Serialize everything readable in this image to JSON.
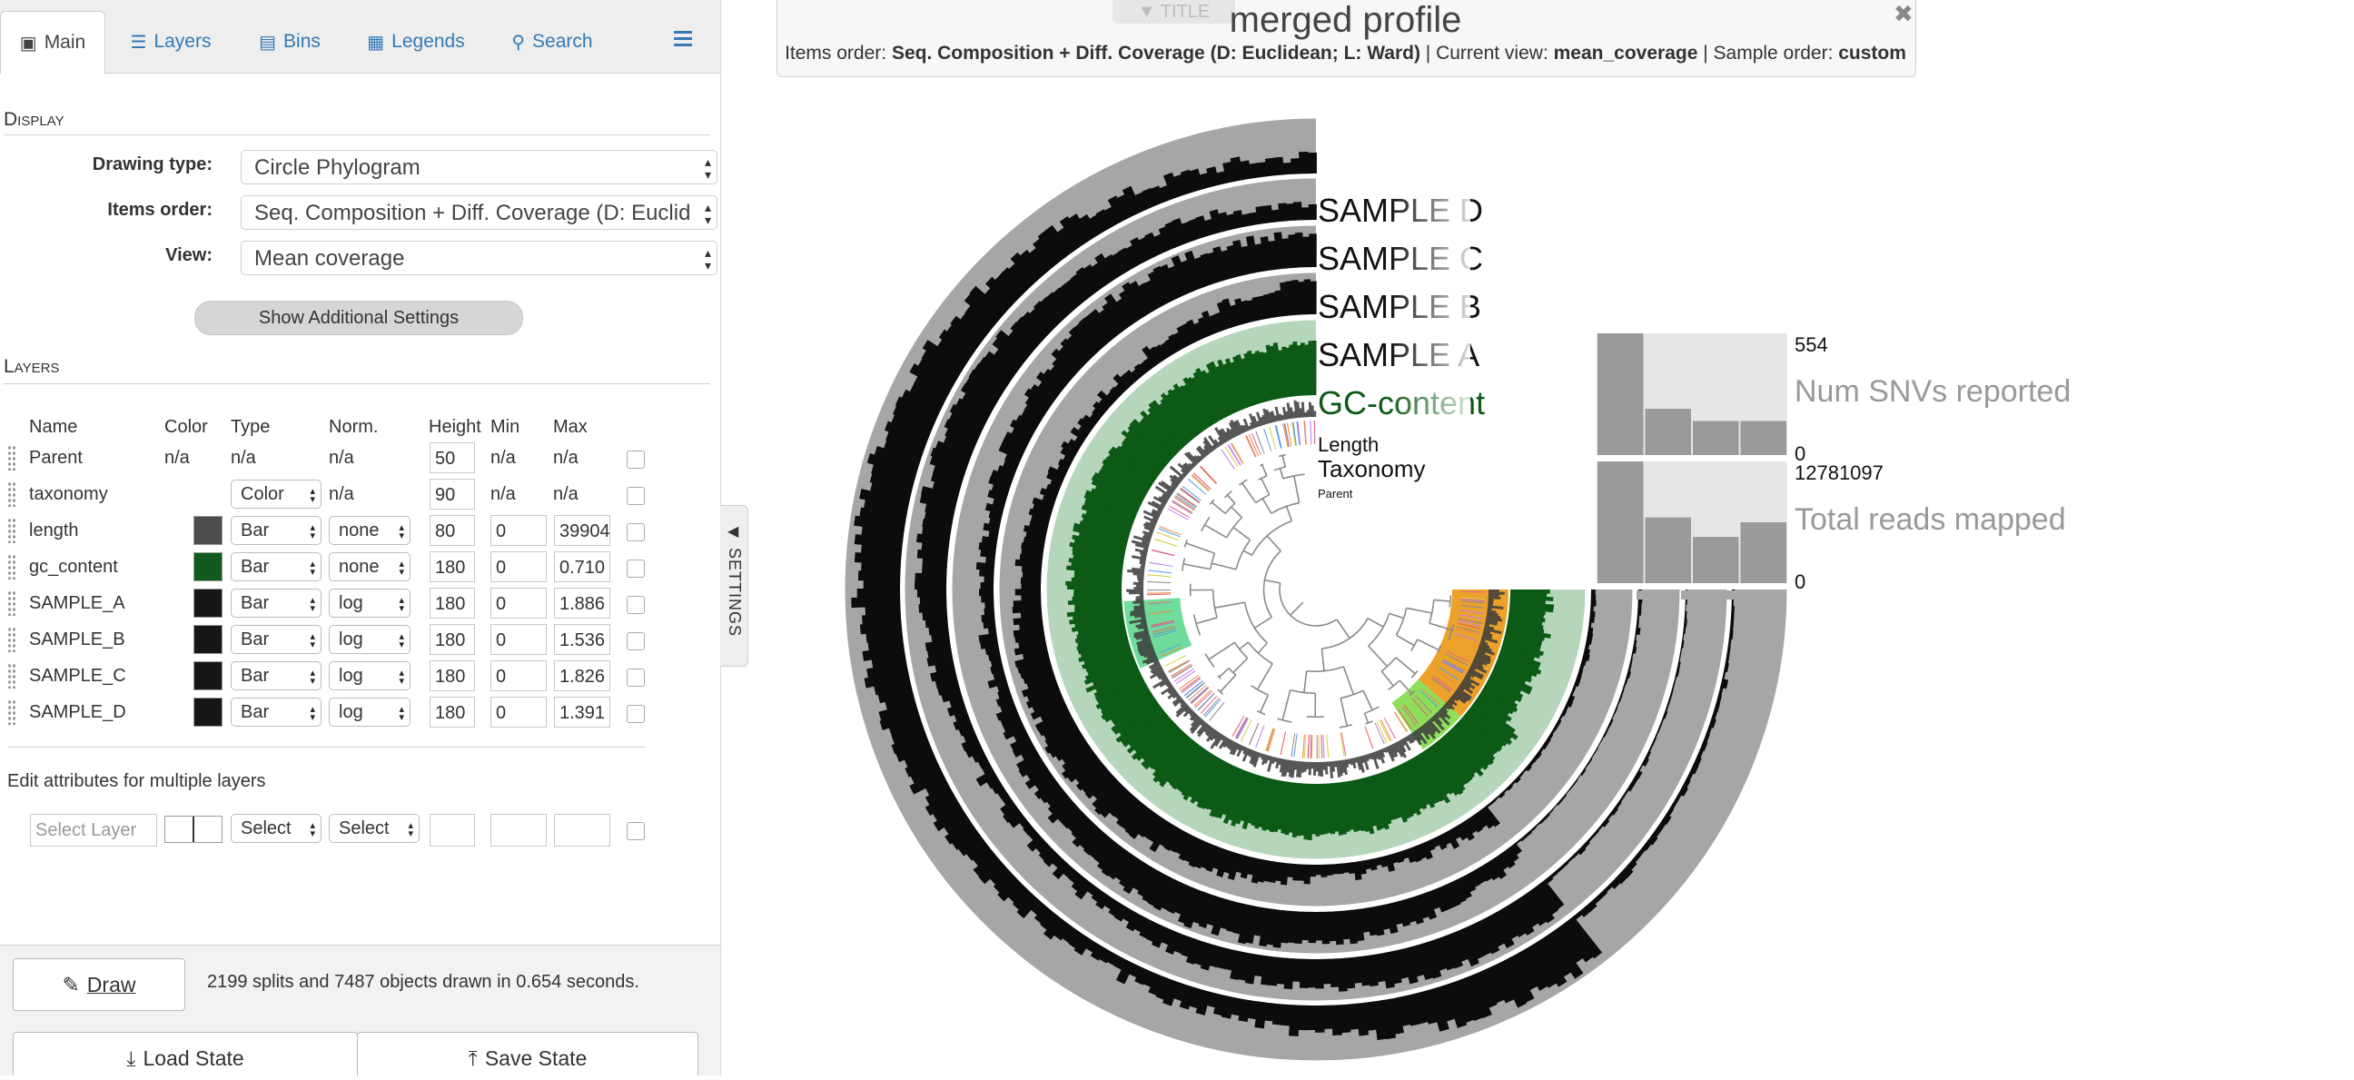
{
  "tabs": [
    {
      "label": "Main",
      "icon": "image-icon"
    },
    {
      "label": "Layers",
      "icon": "layers-icon"
    },
    {
      "label": "Bins",
      "icon": "bins-icon"
    },
    {
      "label": "Legends",
      "icon": "list-icon"
    },
    {
      "label": "Search",
      "icon": "search-icon"
    }
  ],
  "display": {
    "section_title": "Display",
    "drawing_type_label": "Drawing type:",
    "drawing_type_value": "Circle Phylogram",
    "items_order_label": "Items order:",
    "items_order_value": "Seq. Composition + Diff. Coverage (D: Euclid",
    "view_label": "View:",
    "view_value": "Mean coverage",
    "additional_settings": "Show Additional Settings"
  },
  "layers": {
    "section_title": "Layers",
    "headers": {
      "name": "Name",
      "color": "Color",
      "type": "Type",
      "norm": "Norm.",
      "height": "Height",
      "min": "Min",
      "max": "Max"
    },
    "rows": [
      {
        "name": "Parent",
        "color_text": "n/a",
        "type": "n/a",
        "norm": "n/a",
        "height": "50",
        "min": "n/a",
        "max": "n/a",
        "swatch": null
      },
      {
        "name": "taxonomy",
        "color_text": "",
        "type": "Color",
        "norm": "n/a",
        "height": "90",
        "min": "n/a",
        "max": "n/a",
        "swatch": null
      },
      {
        "name": "length",
        "color_text": "",
        "type": "Bar",
        "norm": "none",
        "height": "80",
        "min": "0",
        "max": "39904",
        "swatch": "#4d4d4d"
      },
      {
        "name": "gc_content",
        "color_text": "",
        "type": "Bar",
        "norm": "none",
        "height": "180",
        "min": "0",
        "max": "0.710",
        "swatch": "#0f5a1c"
      },
      {
        "name": "SAMPLE_A",
        "color_text": "",
        "type": "Bar",
        "norm": "log",
        "height": "180",
        "min": "0",
        "max": "1.886",
        "swatch": "#161616"
      },
      {
        "name": "SAMPLE_B",
        "color_text": "",
        "type": "Bar",
        "norm": "log",
        "height": "180",
        "min": "0",
        "max": "1.536",
        "swatch": "#161616"
      },
      {
        "name": "SAMPLE_C",
        "color_text": "",
        "type": "Bar",
        "norm": "log",
        "height": "180",
        "min": "0",
        "max": "1.826",
        "swatch": "#161616"
      },
      {
        "name": "SAMPLE_D",
        "color_text": "",
        "type": "Bar",
        "norm": "log",
        "height": "180",
        "min": "0",
        "max": "1.391",
        "swatch": "#161616"
      }
    ]
  },
  "edit_multiple": {
    "title": "Edit attributes for multiple layers",
    "select_layer_placeholder": "Select Layer",
    "type_select": "Select",
    "norm_select": "Select"
  },
  "draw": {
    "button": "Draw",
    "status": "2199 splits and 7487 objects drawn in 0.654 seconds."
  },
  "state": {
    "load": "Load State",
    "save": "Save State"
  },
  "settings_toggle": "SETTINGS",
  "title_panel": {
    "toggle": "▼ TITLE",
    "title": "merged profile",
    "items_order_prefix": "Items order: ",
    "items_order_value": "Seq. Composition + Diff. Coverage (D: Euclidean; L: Ward)",
    "current_view_prefix": " | Current view: ",
    "current_view_value": "mean_coverage",
    "sample_order_prefix": " | Sample order: ",
    "sample_order_value": "custom"
  },
  "canvas": {
    "layer_labels": [
      "SAMPLE D",
      "SAMPLE C",
      "SAMPLE B",
      "SAMPLE A",
      "GC-content",
      "Length",
      "Taxonomy",
      "Parent"
    ],
    "bar_layers": [
      {
        "title": "Num SNVs reported",
        "max": "554",
        "min": "0",
        "values": [
          1.0,
          0.38,
          0.28,
          0.28
        ]
      },
      {
        "title": "Total reads mapped",
        "max": "12781097",
        "min": "0",
        "values": [
          1.0,
          0.54,
          0.38,
          0.5
        ]
      }
    ],
    "colors": {
      "ring_gray": "#a6a6a6",
      "ring_black": "#0c0c0c",
      "gc_green": "#0d5a16",
      "gc_bg": "#b6d6bc",
      "selection_orange": "#eca22a",
      "selection_lightgreen": "#8ede5a",
      "selection_mint": "#6fdc9c"
    }
  }
}
